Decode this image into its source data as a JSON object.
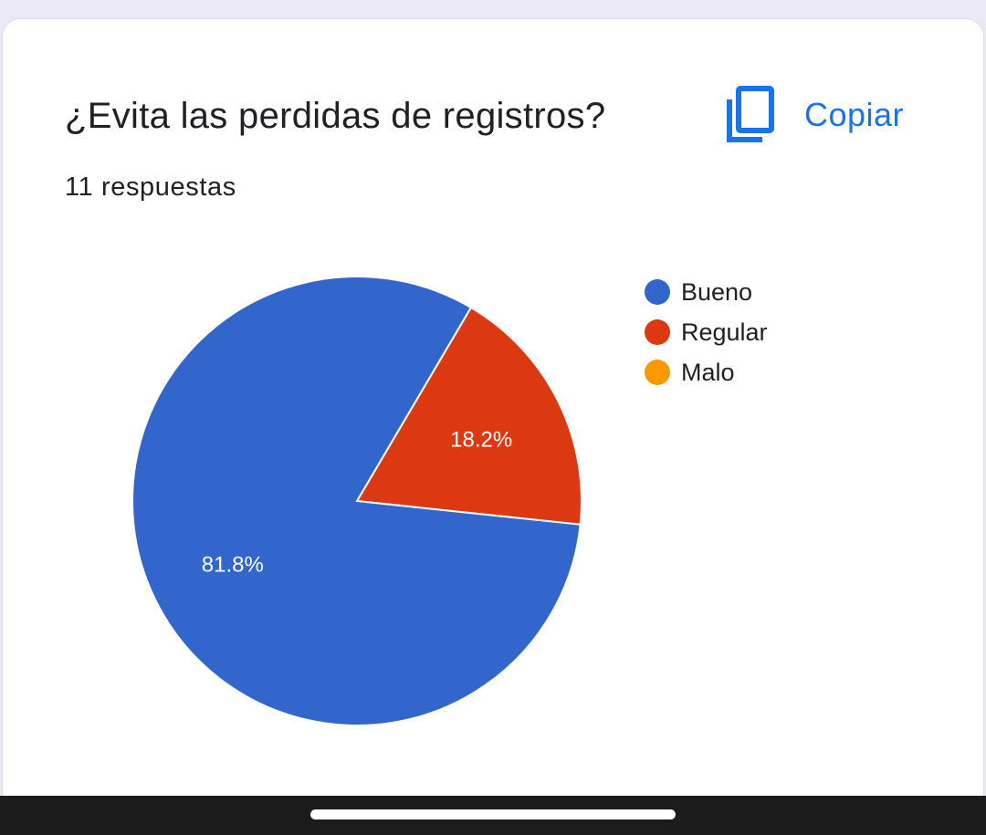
{
  "header": {
    "title": "¿Evita las perdidas de registros?",
    "response_count": "11 respuestas",
    "copy_label": "Copiar",
    "copy_icon": "copy-icon"
  },
  "colors": {
    "accent": "#1a73e8",
    "bueno": "#3366cc",
    "regular": "#dc3912",
    "malo": "#ff9900"
  },
  "chart_data": {
    "type": "pie",
    "title": "¿Evita las perdidas de registros?",
    "categories": [
      "Bueno",
      "Regular",
      "Malo"
    ],
    "values": [
      81.8,
      18.2,
      0
    ],
    "labels": [
      "81.8%",
      "18.2%",
      ""
    ],
    "colors": [
      "#3366cc",
      "#dc3912",
      "#ff9900"
    ],
    "legend_position": "right"
  }
}
